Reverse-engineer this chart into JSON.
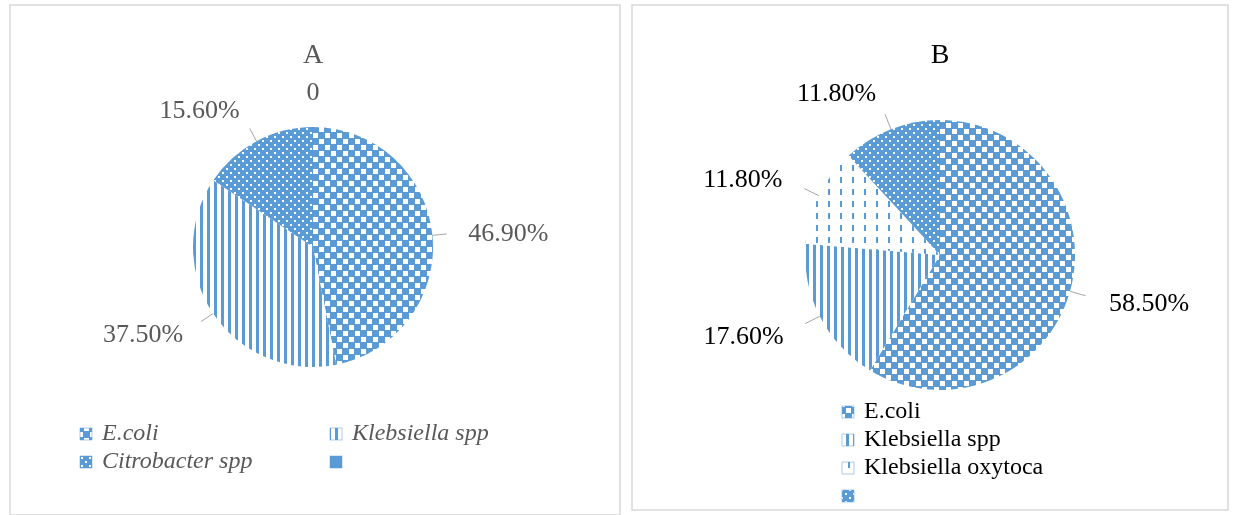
{
  "chart_data": [
    {
      "type": "pie",
      "title": "A",
      "categories": [
        "E.coli",
        "Klebsiella spp",
        "Citrobacter spp",
        null
      ],
      "values": [
        46.9,
        37.5,
        15.6,
        0
      ],
      "value_labels": [
        "46.90%",
        "37.50%",
        "15.60%",
        "0"
      ],
      "colors": [
        "#5b9bd5",
        "#5b9bd5",
        "#5b9bd5",
        "#5b9bd5"
      ],
      "legend": "bottom"
    },
    {
      "type": "pie",
      "title": "B",
      "categories": [
        "E.coli",
        "Klebsiella spp",
        "Klebsiella oxytoca",
        null
      ],
      "values": [
        58.5,
        17.6,
        11.8,
        11.8
      ],
      "value_labels": [
        "58.50%",
        "17.60%",
        "11.80%",
        "11.80%"
      ],
      "colors": [
        "#5b9bd5",
        "#5b9bd5",
        "#5b9bd5",
        "#5b9bd5"
      ],
      "legend": "bottom"
    }
  ]
}
